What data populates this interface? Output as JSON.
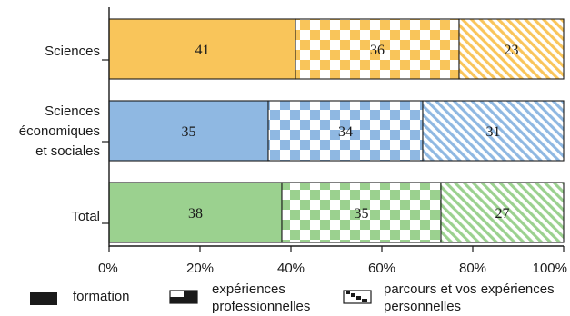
{
  "chart_data": {
    "type": "bar",
    "orientation": "horizontal",
    "stacked": true,
    "categories": [
      [
        "Sciences"
      ],
      [
        "Sciences",
        "économiques",
        "et sociales"
      ],
      [
        "Total"
      ]
    ],
    "series": [
      {
        "name": "formation",
        "values": [
          41,
          35,
          38
        ],
        "pattern": "solid"
      },
      {
        "name": "expériences professionnelles",
        "values": [
          36,
          34,
          35
        ],
        "pattern": "checker"
      },
      {
        "name": "parcours et vos expériences personnelles",
        "values": [
          23,
          31,
          27
        ],
        "pattern": "diagonal"
      }
    ],
    "data_labels": [
      [
        "41",
        "36",
        "23"
      ],
      [
        "35",
        "34",
        "31"
      ],
      [
        "38",
        "35",
        "27"
      ]
    ],
    "x_ticks": [
      "0%",
      "20%",
      "40%",
      "60%",
      "80%",
      "100%"
    ],
    "xlim": [
      0,
      100
    ],
    "legend_position": "bottom",
    "legend": [
      {
        "lines": [
          "formation"
        ],
        "swatch": "solid"
      },
      {
        "lines": [
          "expériences",
          "professionnelles"
        ],
        "swatch": "half"
      },
      {
        "lines": [
          "parcours et vos expériences",
          "personnelles"
        ],
        "swatch": "diagonal"
      }
    ],
    "colors": [
      "#f9c55a",
      "#8fb8e2",
      "#9bd18f"
    ]
  }
}
